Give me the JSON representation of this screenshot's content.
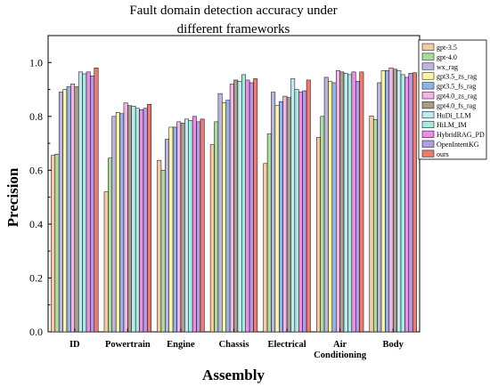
{
  "chart_data": {
    "type": "bar",
    "title_lines": [
      "Fault domain detection accuracy under",
      "different frameworks"
    ],
    "xlabel": "Assembly",
    "ylabel": "Precision",
    "ylim": [
      0.0,
      1.1
    ],
    "yticks": [
      "0.0",
      "0.2",
      "0.4",
      "0.6",
      "0.8",
      "1.0"
    ],
    "grid": false,
    "legend_position": "top-right",
    "categories": [
      {
        "lines": [
          "ID"
        ]
      },
      {
        "lines": [
          "Powertrain"
        ]
      },
      {
        "lines": [
          "Engine"
        ]
      },
      {
        "lines": [
          "Chassis"
        ]
      },
      {
        "lines": [
          "Electrical"
        ]
      },
      {
        "lines": [
          "Air",
          "Conditioning"
        ]
      },
      {
        "lines": [
          "Body"
        ]
      }
    ],
    "series": [
      {
        "name": "gpt-3.5",
        "color": "#F6C9A1",
        "values": [
          0.655,
          0.52,
          0.637,
          0.695,
          0.625,
          0.722,
          0.802
        ]
      },
      {
        "name": "gpt-4.0",
        "color": "#A9DC9E",
        "values": [
          0.66,
          0.645,
          0.6,
          0.78,
          0.735,
          0.8,
          0.788
        ]
      },
      {
        "name": "wx_rag",
        "color": "#BCB6DF",
        "values": [
          0.89,
          0.8,
          0.715,
          0.885,
          0.89,
          0.945,
          0.925
        ]
      },
      {
        "name": "gpt3.5_zs_rag",
        "color": "#FBF4A6",
        "values": [
          0.9,
          0.815,
          0.76,
          0.85,
          0.84,
          0.93,
          0.97
        ]
      },
      {
        "name": "gpt3.5_fs_rag",
        "color": "#8FB4E9",
        "values": [
          0.91,
          0.81,
          0.76,
          0.86,
          0.855,
          0.925,
          0.97
        ]
      },
      {
        "name": "gpt4.0_zs_rag",
        "color": "#F6B3E6",
        "values": [
          0.92,
          0.85,
          0.78,
          0.92,
          0.875,
          0.97,
          0.98
        ]
      },
      {
        "name": "gpt4.0_fs_rag",
        "color": "#A5A08C",
        "values": [
          0.91,
          0.84,
          0.775,
          0.935,
          0.87,
          0.965,
          0.975
        ]
      },
      {
        "name": "HuDi_LLM",
        "color": "#BFEAF1",
        "values": [
          0.965,
          0.838,
          0.79,
          0.93,
          0.94,
          0.96,
          0.97
        ]
      },
      {
        "name": "HiLM_IM",
        "color": "#A4ECDC",
        "values": [
          0.958,
          0.83,
          0.785,
          0.955,
          0.9,
          0.955,
          0.955
        ]
      },
      {
        "name": "HybridRAG_PD",
        "color": "#F08CE8",
        "values": [
          0.965,
          0.825,
          0.8,
          0.935,
          0.89,
          0.965,
          0.945
        ]
      },
      {
        "name": "OpenIntentKG",
        "color": "#B49BE8",
        "values": [
          0.95,
          0.83,
          0.78,
          0.925,
          0.895,
          0.93,
          0.96
        ]
      },
      {
        "name": "ours",
        "color": "#F07A6E",
        "values": [
          0.98,
          0.845,
          0.79,
          0.94,
          0.935,
          0.965,
          0.962
        ]
      }
    ]
  }
}
